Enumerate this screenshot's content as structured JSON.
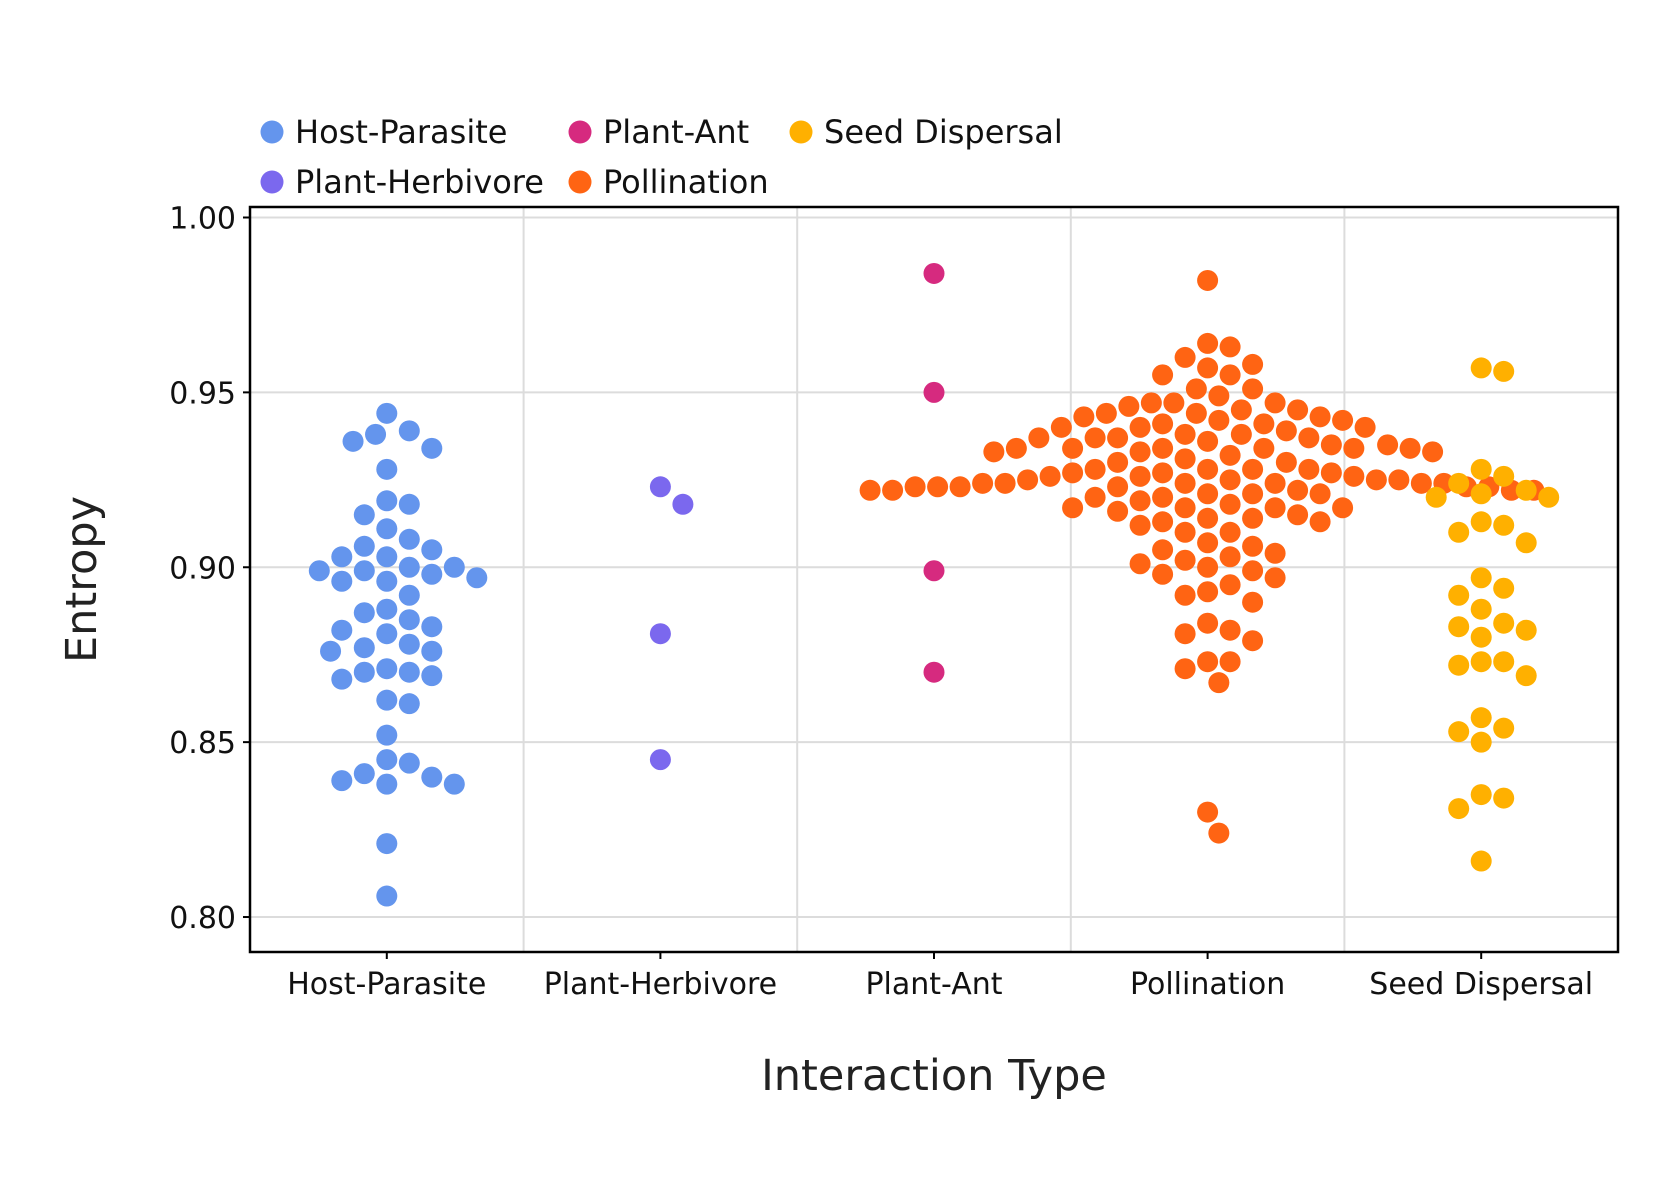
{
  "chart_data": {
    "type": "scatter",
    "subtype": "beeswarm",
    "title": "",
    "xlabel": "Interaction Type",
    "ylabel": "Entropy",
    "categories": [
      "Host-Parasite",
      "Plant-Herbivore",
      "Plant-Ant",
      "Pollination",
      "Seed Dispersal"
    ],
    "ylim": [
      0.79,
      1.003
    ],
    "yticks": [
      0.8,
      0.85,
      0.9,
      0.95,
      1.0
    ],
    "ytick_labels": [
      "0.80",
      "0.85",
      "0.90",
      "0.95",
      "1.00"
    ],
    "grid": true,
    "legend": {
      "placement": "top-left, outside plot",
      "entries": [
        "Host-Parasite",
        "Plant-Ant",
        "Seed Dispersal",
        "Plant-Herbivore",
        "Pollination"
      ]
    },
    "series": [
      {
        "name": "Host-Parasite",
        "color": "#6495ED",
        "values": [
          0.944,
          0.939,
          0.938,
          0.936,
          0.934,
          0.928,
          0.919,
          0.918,
          0.915,
          0.911,
          0.908,
          0.906,
          0.905,
          0.903,
          0.903,
          0.9,
          0.9,
          0.899,
          0.899,
          0.898,
          0.897,
          0.896,
          0.896,
          0.892,
          0.888,
          0.887,
          0.885,
          0.883,
          0.882,
          0.881,
          0.878,
          0.877,
          0.876,
          0.876,
          0.871,
          0.87,
          0.87,
          0.869,
          0.868,
          0.862,
          0.861,
          0.852,
          0.845,
          0.844,
          0.841,
          0.84,
          0.839,
          0.838,
          0.838,
          0.821,
          0.806
        ]
      },
      {
        "name": "Plant-Herbivore",
        "color": "#7B68EE",
        "values": [
          0.923,
          0.918,
          0.881,
          0.845
        ]
      },
      {
        "name": "Plant-Ant",
        "color": "#D62A7F",
        "values": [
          0.984,
          0.95,
          0.899,
          0.87
        ]
      },
      {
        "name": "Pollination",
        "color": "#FF6413",
        "values": [
          0.982,
          0.964,
          0.963,
          0.96,
          0.958,
          0.957,
          0.955,
          0.955,
          0.951,
          0.951,
          0.949,
          0.947,
          0.947,
          0.947,
          0.946,
          0.945,
          0.945,
          0.944,
          0.944,
          0.943,
          0.943,
          0.942,
          0.942,
          0.941,
          0.941,
          0.94,
          0.94,
          0.94,
          0.939,
          0.938,
          0.938,
          0.937,
          0.937,
          0.937,
          0.937,
          0.936,
          0.935,
          0.935,
          0.934,
          0.934,
          0.934,
          0.934,
          0.934,
          0.934,
          0.933,
          0.933,
          0.933,
          0.932,
          0.931,
          0.93,
          0.93,
          0.928,
          0.928,
          0.928,
          0.928,
          0.927,
          0.927,
          0.927,
          0.926,
          0.926,
          0.926,
          0.925,
          0.925,
          0.925,
          0.925,
          0.924,
          0.924,
          0.924,
          0.924,
          0.924,
          0.924,
          0.923,
          0.923,
          0.923,
          0.923,
          0.923,
          0.923,
          0.922,
          0.922,
          0.922,
          0.922,
          0.922,
          0.921,
          0.921,
          0.921,
          0.92,
          0.92,
          0.919,
          0.918,
          0.917,
          0.917,
          0.917,
          0.917,
          0.916,
          0.915,
          0.914,
          0.914,
          0.913,
          0.913,
          0.912,
          0.91,
          0.91,
          0.907,
          0.906,
          0.905,
          0.904,
          0.903,
          0.902,
          0.901,
          0.9,
          0.899,
          0.898,
          0.897,
          0.895,
          0.893,
          0.892,
          0.89,
          0.884,
          0.882,
          0.881,
          0.879,
          0.873,
          0.873,
          0.871,
          0.867,
          0.83,
          0.824
        ]
      },
      {
        "name": "Seed Dispersal",
        "color": "#FFB000",
        "values": [
          0.957,
          0.956,
          0.928,
          0.926,
          0.924,
          0.922,
          0.921,
          0.92,
          0.92,
          0.913,
          0.912,
          0.91,
          0.907,
          0.897,
          0.894,
          0.892,
          0.888,
          0.884,
          0.883,
          0.882,
          0.88,
          0.873,
          0.873,
          0.872,
          0.869,
          0.857,
          0.854,
          0.853,
          0.85,
          0.835,
          0.834,
          0.831,
          0.816
        ]
      }
    ]
  }
}
